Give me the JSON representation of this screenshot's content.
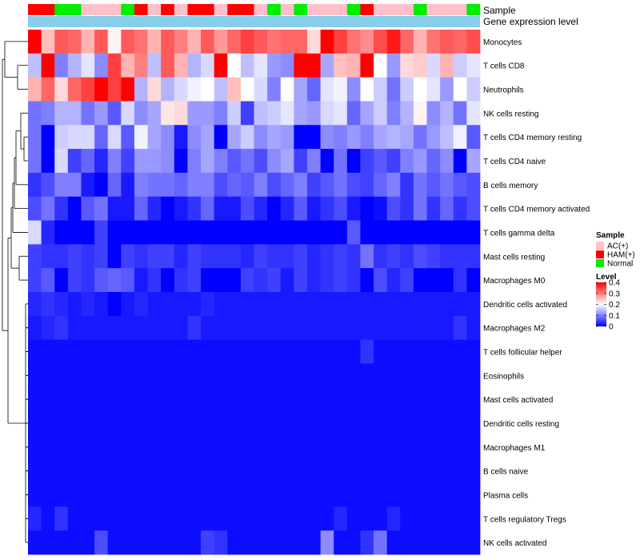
{
  "chart_data": {
    "type": "heatmap",
    "title": "",
    "annotation_labels": [
      "Sample",
      "Gene expression level"
    ],
    "rows": [
      "Monocytes",
      "T cells CD8",
      "Neutrophils",
      "NK cells resting",
      "T cells CD4 memory resting",
      "T cells CD4 naive",
      "B cells memory",
      "T cells CD4 memory activated",
      "T cells gamma delta",
      "Mast cells resting",
      "Macrophages M0",
      "Dendritic cells activated",
      "Macrophages M2",
      "T cells follicular helper",
      "Eosinophils",
      "Mast cells activated",
      "Dendritic cells resting",
      "Macrophages M1",
      "B cells naive",
      "Plasma cells",
      "T cells regulatory  Tregs",
      "NK cells activated"
    ],
    "column_groups": [
      "HAM(+)",
      "HAM(+)",
      "Normal",
      "Normal",
      "AC(+)",
      "AC(+)",
      "AC(+)",
      "Normal",
      "HAM(+)",
      "AC(+)",
      "HAM(+)",
      "AC(+)",
      "HAM(+)",
      "HAM(+)",
      "AC(+)",
      "HAM(+)",
      "HAM(+)",
      "AC(+)",
      "Normal",
      "AC(+)",
      "Normal",
      "AC(+)",
      "AC(+)",
      "AC(+)",
      "Normal",
      "HAM(+)",
      "AC(+)",
      "AC(+)",
      "AC(+)",
      "Normal",
      "AC(+)",
      "AC(+)",
      "AC(+)",
      "Normal"
    ],
    "values": [
      [
        0.4,
        0.25,
        0.33,
        0.32,
        0.26,
        0.33,
        0.21,
        0.33,
        0.31,
        0.26,
        0.33,
        0.3,
        0.26,
        0.33,
        0.28,
        0.32,
        0.35,
        0.33,
        0.31,
        0.32,
        0.32,
        0.23,
        0.4,
        0.35,
        0.31,
        0.29,
        0.34,
        0.38,
        0.32,
        0.26,
        0.31,
        0.33,
        0.32,
        0.34
      ],
      [
        0.15,
        0.4,
        0.1,
        0.14,
        0.18,
        0.11,
        0.35,
        0.26,
        0.3,
        0.15,
        0.33,
        0.26,
        0.14,
        0.17,
        0.4,
        0.2,
        0.15,
        0.18,
        0.12,
        0.11,
        0.4,
        0.4,
        0.13,
        0.25,
        0.26,
        0.4,
        0.2,
        0.12,
        0.23,
        0.24,
        0.17,
        0.26,
        0.16,
        0.18
      ],
      [
        0.26,
        0.32,
        0.23,
        0.32,
        0.35,
        0.4,
        0.35,
        0.4,
        0.14,
        0.23,
        0.14,
        0.17,
        0.19,
        0.2,
        0.15,
        0.25,
        0.2,
        0.17,
        0.1,
        0.2,
        0.13,
        0.08,
        0.18,
        0.19,
        0.11,
        0.2,
        0.16,
        0.09,
        0.16,
        0.2,
        0.18,
        0.12,
        0.2,
        0.16
      ],
      [
        0.09,
        0.1,
        0.14,
        0.14,
        0.09,
        0.12,
        0.07,
        0.17,
        0.11,
        0.13,
        0.22,
        0.23,
        0.12,
        0.12,
        0.1,
        0.16,
        0.05,
        0.15,
        0.16,
        0.18,
        0.13,
        0.12,
        0.17,
        0.18,
        0.08,
        0.13,
        0.16,
        0.1,
        0.14,
        0.21,
        0.11,
        0.14,
        0.09,
        0.18
      ],
      [
        0.09,
        0.0,
        0.16,
        0.17,
        0.17,
        0.08,
        0.17,
        0.07,
        0.19,
        0.13,
        0.11,
        0.02,
        0.11,
        0.13,
        0.0,
        0.13,
        0.16,
        0.11,
        0.13,
        0.12,
        0.0,
        0.0,
        0.11,
        0.1,
        0.12,
        0.1,
        0.13,
        0.14,
        0.13,
        0.09,
        0.12,
        0.15,
        0.19,
        0.07
      ],
      [
        0.09,
        0.0,
        0.17,
        0.05,
        0.08,
        0.03,
        0.1,
        0.05,
        0.12,
        0.12,
        0.11,
        0.0,
        0.1,
        0.13,
        0.1,
        0.07,
        0.09,
        0.06,
        0.11,
        0.13,
        0.05,
        0.1,
        0.0,
        0.09,
        0.0,
        0.05,
        0.07,
        0.05,
        0.1,
        0.12,
        0.08,
        0.11,
        0.0,
        0.13
      ],
      [
        0.04,
        0.06,
        0.1,
        0.1,
        0.02,
        0.0,
        0.08,
        0.02,
        0.1,
        0.09,
        0.09,
        0.08,
        0.1,
        0.1,
        0.06,
        0.08,
        0.07,
        0.1,
        0.06,
        0.08,
        0.1,
        0.05,
        0.07,
        0.09,
        0.06,
        0.05,
        0.08,
        0.1,
        0.04,
        0.09,
        0.07,
        0.09,
        0.07,
        0.06
      ],
      [
        0.06,
        0.09,
        0.04,
        0.0,
        0.07,
        0.09,
        0.02,
        0.02,
        0.08,
        0.03,
        0.0,
        0.02,
        0.04,
        0.08,
        0.02,
        0.02,
        0.06,
        0.03,
        0.0,
        0.03,
        0.07,
        0.02,
        0.04,
        0.06,
        0.02,
        0.0,
        0.01,
        0.06,
        0.04,
        0.09,
        0.04,
        0.08,
        0.04,
        0.06
      ],
      [
        0.17,
        0.03,
        0.0,
        0.0,
        0.0,
        0.05,
        0.0,
        0.0,
        0.0,
        0.0,
        0.0,
        0.0,
        0.0,
        0.0,
        0.0,
        0.0,
        0.0,
        0.0,
        0.0,
        0.0,
        0.0,
        0.0,
        0.0,
        0.0,
        0.07,
        0.0,
        0.0,
        0.0,
        0.0,
        0.0,
        0.0,
        0.0,
        0.0,
        0.0
      ],
      [
        0.05,
        0.04,
        0.04,
        0.05,
        0.04,
        0.05,
        0.0,
        0.05,
        0.04,
        0.05,
        0.05,
        0.03,
        0.05,
        0.04,
        0.04,
        0.04,
        0.03,
        0.05,
        0.04,
        0.04,
        0.05,
        0.03,
        0.04,
        0.05,
        0.04,
        0.09,
        0.04,
        0.05,
        0.04,
        0.06,
        0.05,
        0.04,
        0.04,
        0.04
      ],
      [
        0.05,
        0.07,
        0.0,
        0.05,
        0.04,
        0.07,
        0.08,
        0.07,
        0.02,
        0.04,
        0.0,
        0.04,
        0.05,
        0.0,
        0.0,
        0.0,
        0.05,
        0.04,
        0.05,
        0.02,
        0.05,
        0.03,
        0.04,
        0.05,
        0.04,
        0.0,
        0.06,
        0.03,
        0.05,
        0.0,
        0.0,
        0.0,
        0.04,
        0.0
      ],
      [
        0.03,
        0.04,
        0.03,
        0.02,
        0.03,
        0.02,
        0.0,
        0.02,
        0.03,
        0.02,
        0.02,
        0.02,
        0.02,
        0.03,
        0.02,
        0.02,
        0.02,
        0.02,
        0.02,
        0.02,
        0.02,
        0.02,
        0.02,
        0.02,
        0.02,
        0.02,
        0.02,
        0.02,
        0.02,
        0.02,
        0.02,
        0.02,
        0.02,
        0.02
      ],
      [
        0.02,
        0.03,
        0.04,
        0.02,
        0.02,
        0.02,
        0.02,
        0.02,
        0.02,
        0.02,
        0.02,
        0.02,
        0.04,
        0.02,
        0.02,
        0.02,
        0.02,
        0.02,
        0.02,
        0.02,
        0.02,
        0.02,
        0.02,
        0.02,
        0.02,
        0.02,
        0.02,
        0.02,
        0.02,
        0.02,
        0.02,
        0.02,
        0.04,
        0.02
      ],
      [
        0.01,
        0.01,
        0.01,
        0.01,
        0.01,
        0.01,
        0.01,
        0.01,
        0.01,
        0.01,
        0.01,
        0.01,
        0.01,
        0.01,
        0.01,
        0.01,
        0.01,
        0.01,
        0.01,
        0.01,
        0.01,
        0.01,
        0.01,
        0.01,
        0.01,
        0.04,
        0.01,
        0.01,
        0.01,
        0.01,
        0.01,
        0.01,
        0.01,
        0.01
      ],
      [
        0.01,
        0.01,
        0.01,
        0.01,
        0.01,
        0.01,
        0.01,
        0.01,
        0.01,
        0.01,
        0.01,
        0.01,
        0.01,
        0.01,
        0.01,
        0.01,
        0.01,
        0.01,
        0.01,
        0.01,
        0.01,
        0.01,
        0.01,
        0.01,
        0.01,
        0.01,
        0.01,
        0.01,
        0.01,
        0.01,
        0.01,
        0.01,
        0.01,
        0.01
      ],
      [
        0.01,
        0.01,
        0.01,
        0.01,
        0.01,
        0.01,
        0.01,
        0.01,
        0.01,
        0.01,
        0.01,
        0.01,
        0.01,
        0.01,
        0.01,
        0.01,
        0.01,
        0.01,
        0.01,
        0.01,
        0.01,
        0.01,
        0.01,
        0.01,
        0.01,
        0.01,
        0.01,
        0.01,
        0.01,
        0.01,
        0.01,
        0.01,
        0.01,
        0.01
      ],
      [
        0.01,
        0.01,
        0.01,
        0.01,
        0.01,
        0.01,
        0.01,
        0.01,
        0.01,
        0.01,
        0.01,
        0.01,
        0.01,
        0.01,
        0.01,
        0.01,
        0.01,
        0.01,
        0.01,
        0.01,
        0.01,
        0.01,
        0.01,
        0.01,
        0.01,
        0.01,
        0.01,
        0.01,
        0.01,
        0.01,
        0.01,
        0.01,
        0.01,
        0.01
      ],
      [
        0.01,
        0.01,
        0.01,
        0.01,
        0.01,
        0.01,
        0.01,
        0.01,
        0.01,
        0.01,
        0.01,
        0.01,
        0.01,
        0.01,
        0.01,
        0.01,
        0.01,
        0.01,
        0.01,
        0.01,
        0.01,
        0.01,
        0.01,
        0.01,
        0.01,
        0.01,
        0.01,
        0.01,
        0.01,
        0.01,
        0.01,
        0.01,
        0.01,
        0.01
      ],
      [
        0.01,
        0.01,
        0.01,
        0.01,
        0.01,
        0.01,
        0.01,
        0.01,
        0.01,
        0.01,
        0.01,
        0.01,
        0.01,
        0.01,
        0.01,
        0.01,
        0.01,
        0.01,
        0.01,
        0.01,
        0.01,
        0.01,
        0.01,
        0.01,
        0.01,
        0.01,
        0.01,
        0.01,
        0.01,
        0.01,
        0.01,
        0.01,
        0.01,
        0.01
      ],
      [
        0.01,
        0.01,
        0.01,
        0.01,
        0.01,
        0.01,
        0.01,
        0.01,
        0.01,
        0.01,
        0.01,
        0.01,
        0.01,
        0.01,
        0.01,
        0.01,
        0.01,
        0.01,
        0.01,
        0.01,
        0.01,
        0.01,
        0.01,
        0.01,
        0.01,
        0.01,
        0.01,
        0.01,
        0.01,
        0.01,
        0.01,
        0.01,
        0.01,
        0.01
      ],
      [
        0.03,
        0.01,
        0.04,
        0.01,
        0.01,
        0.01,
        0.01,
        0.01,
        0.01,
        0.01,
        0.01,
        0.01,
        0.01,
        0.01,
        0.01,
        0.01,
        0.01,
        0.01,
        0.01,
        0.01,
        0.01,
        0.01,
        0.01,
        0.03,
        0.01,
        0.01,
        0.01,
        0.03,
        0.01,
        0.01,
        0.01,
        0.01,
        0.01,
        0.01
      ],
      [
        0.01,
        0.01,
        0.01,
        0.01,
        0.01,
        0.06,
        0.01,
        0.01,
        0.01,
        0.01,
        0.01,
        0.01,
        0.01,
        0.05,
        0.04,
        0.01,
        0.01,
        0.01,
        0.01,
        0.01,
        0.01,
        0.01,
        0.11,
        0.01,
        0.01,
        0.04,
        0.09,
        0.01,
        0.01,
        0.01,
        0.01,
        0.01,
        0.01,
        0.01
      ]
    ],
    "legend": {
      "sample_title": "Sample",
      "sample_items": [
        {
          "label": "AC(+)",
          "color": "#ffc0cb"
        },
        {
          "label": "HAM(+)",
          "color": "#ff0000"
        },
        {
          "label": "Normal",
          "color": "#00ee00"
        }
      ],
      "level_title": "Level",
      "level_ticks": [
        "0.4",
        "0.3",
        "0.2",
        "0.1",
        "0"
      ],
      "level_range": [
        0,
        0.4
      ]
    },
    "colors": {
      "low": "#0000ff",
      "mid": "#ffffff",
      "high": "#ff0000",
      "expression_bar": "#87ceeb",
      "dendrogram": "#000000"
    }
  }
}
